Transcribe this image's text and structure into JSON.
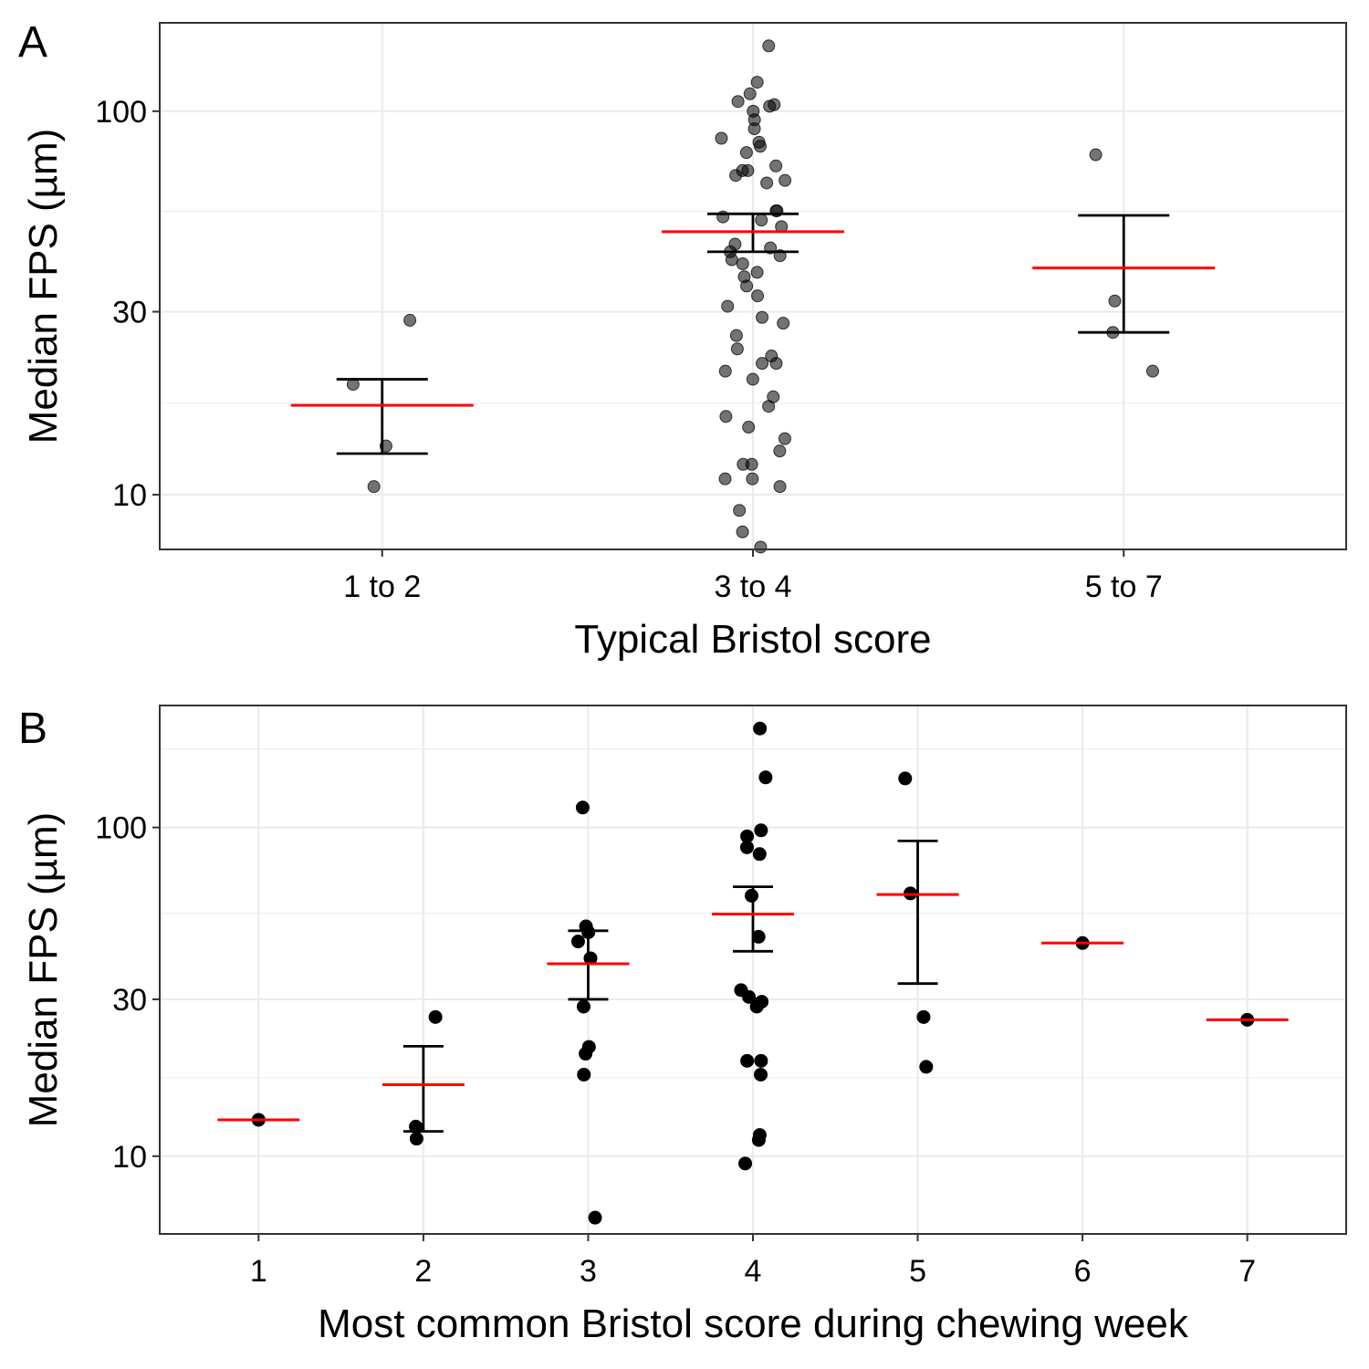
{
  "chart_data": [
    {
      "panel_letter": "A",
      "type": "scatter",
      "xlabel": "Typical Bristol score",
      "ylabel": "Median FPS (µm)",
      "y_scale": "log10",
      "ylim": [
        7.2,
        170
      ],
      "y_ticks": [
        10,
        30,
        100
      ],
      "y_tick_labels": [
        "10",
        "30",
        "100"
      ],
      "y_minor_ticks": [
        17.32,
        54.77
      ],
      "categories": [
        "1 to 2",
        "3 to 4",
        "5 to 7"
      ],
      "grid": true,
      "legend": "none",
      "point_color": "#000000",
      "point_alpha": 0.55,
      "mean_color": "#ff0000",
      "groups": [
        {
          "category": "1 to 2",
          "mean": 17.1,
          "ci_low": 12.8,
          "ci_high": 20.0,
          "points": [
            28.5,
            19.4,
            13.4,
            10.5
          ]
        },
        {
          "category": "3 to 4",
          "mean": 48.5,
          "ci_low": 43.0,
          "ci_high": 54.0,
          "points": [
            148,
            119,
            111,
            106,
            104,
            103,
            100,
            95,
            90,
            85,
            83,
            81,
            78,
            72,
            70,
            70,
            68,
            66,
            65,
            55,
            55,
            53,
            52,
            50,
            45,
            44,
            43,
            42,
            41,
            40,
            38,
            37,
            35,
            33,
            31,
            29,
            28,
            26,
            24,
            23,
            22,
            22,
            21,
            20,
            18,
            17,
            16,
            15,
            14,
            13,
            12,
            12,
            11,
            11,
            10.5,
            9.1,
            8.0,
            7.3
          ]
        },
        {
          "category": "5 to 7",
          "mean": 39.0,
          "ci_low": 26.5,
          "ci_high": 53.5,
          "points": [
            77,
            32,
            26.5,
            21
          ]
        }
      ]
    },
    {
      "panel_letter": "B",
      "type": "scatter",
      "xlabel": "Most common Bristol score during chewing week",
      "ylabel": "Median FPS (µm)",
      "y_scale": "log10",
      "ylim": [
        5.8,
        235
      ],
      "y_ticks": [
        10,
        30,
        100
      ],
      "y_tick_labels": [
        "10",
        "30",
        "100"
      ],
      "y_minor_ticks": [
        5.77,
        17.32,
        54.77,
        173.2
      ],
      "categories": [
        "1",
        "2",
        "3",
        "4",
        "5",
        "6",
        "7"
      ],
      "grid": true,
      "legend": "none",
      "point_color": "#000000",
      "point_alpha": 1,
      "mean_color": "#ff0000",
      "groups": [
        {
          "category": "1",
          "mean": 12.9,
          "points": [
            12.9
          ]
        },
        {
          "category": "2",
          "mean": 16.5,
          "ci_low": 11.9,
          "ci_high": 21.6,
          "points": [
            26.5,
            12.3,
            11.3
          ]
        },
        {
          "category": "3",
          "mean": 38.5,
          "ci_low": 30.0,
          "ci_high": 48.5,
          "points": [
            115,
            50,
            48,
            45,
            40,
            28.5,
            21.5,
            20.5,
            17.7,
            6.5
          ]
        },
        {
          "category": "4",
          "mean": 54.5,
          "ci_low": 42.0,
          "ci_high": 66.0,
          "points": [
            200,
            142,
            98,
            94,
            87,
            83,
            62,
            46.5,
            32,
            30.5,
            29.5,
            28.5,
            19.5,
            19.5,
            17.7,
            11.6,
            11.2,
            9.5
          ]
        },
        {
          "category": "5",
          "mean": 62.5,
          "ci_low": 33.5,
          "ci_high": 91.0,
          "points": [
            141,
            63,
            26.5,
            18.7
          ]
        },
        {
          "category": "6",
          "mean": 44.5,
          "points": [
            44.5
          ]
        },
        {
          "category": "7",
          "mean": 26.0,
          "points": [
            26.0
          ]
        }
      ]
    }
  ]
}
